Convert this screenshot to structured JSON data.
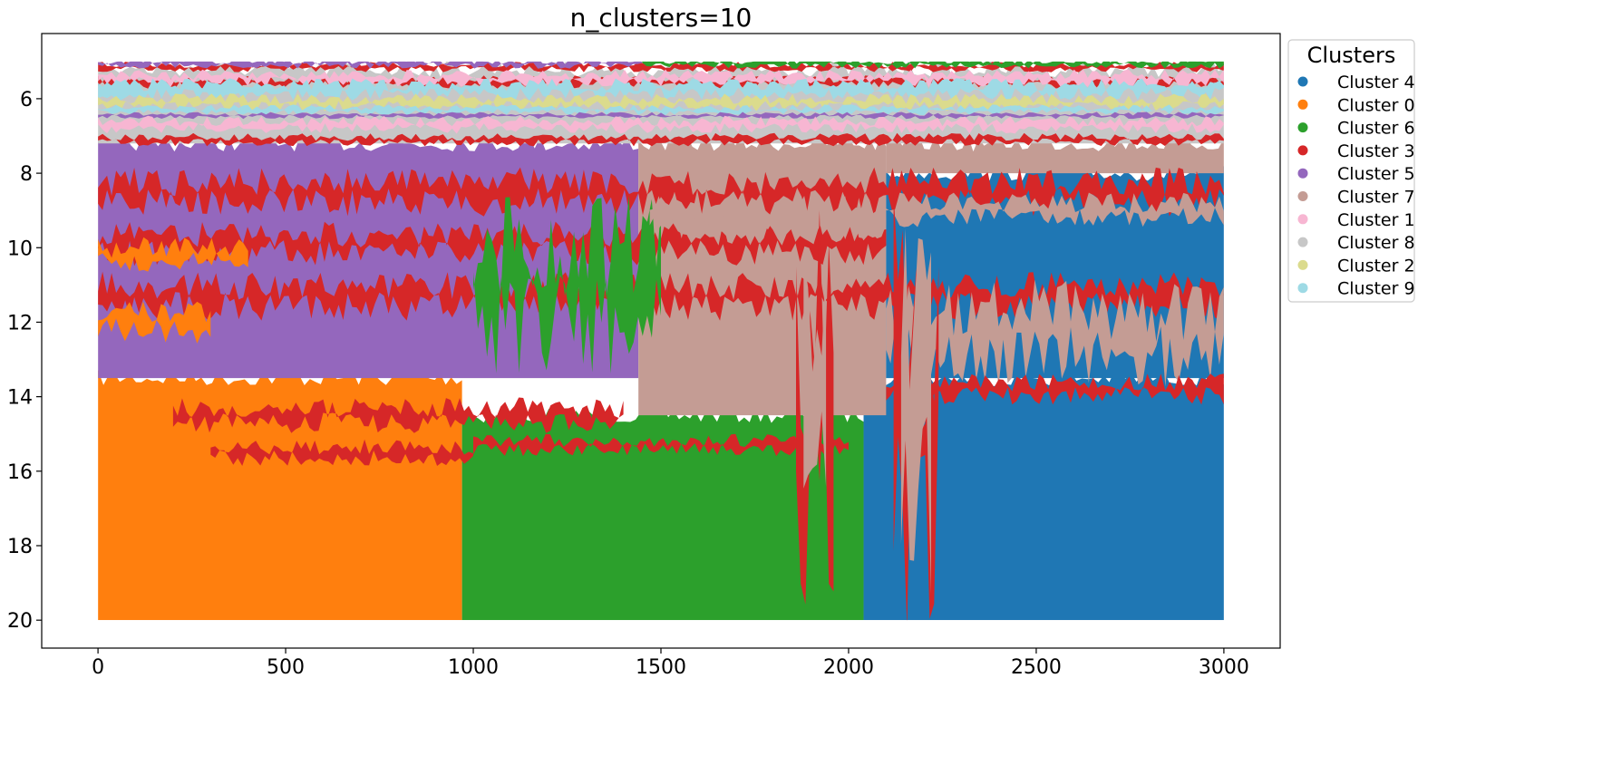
{
  "chart_data": {
    "type": "scatter",
    "title": "n_clusters=10",
    "xlabel": "",
    "ylabel": "",
    "xlim": [
      -150,
      3150
    ],
    "ylim": [
      20.75,
      4.25
    ],
    "y_inverted": true,
    "x_ticks": [
      0,
      500,
      1000,
      1500,
      2000,
      2500,
      3000
    ],
    "x_tick_labels": [
      "0",
      "500",
      "1000",
      "1500",
      "2000",
      "2500",
      "3000"
    ],
    "y_ticks": [
      6,
      8,
      10,
      12,
      14,
      16,
      18,
      20
    ],
    "y_tick_labels": [
      "6",
      "8",
      "10",
      "12",
      "14",
      "16",
      "18",
      "20"
    ],
    "grid": false,
    "legend": {
      "title": "Clusters",
      "placement": "outside-top-right",
      "entries": [
        {
          "label": "Cluster 4",
          "color": "#1f77b4"
        },
        {
          "label": "Cluster 0",
          "color": "#ff7f0e"
        },
        {
          "label": "Cluster 6",
          "color": "#2ca02c"
        },
        {
          "label": "Cluster 3",
          "color": "#d62728"
        },
        {
          "label": "Cluster 5",
          "color": "#9467bd"
        },
        {
          "label": "Cluster 7",
          "color": "#c49c94"
        },
        {
          "label": "Cluster 1",
          "color": "#f7b6d2"
        },
        {
          "label": "Cluster 8",
          "color": "#c7c7c7"
        },
        {
          "label": "Cluster 2",
          "color": "#dbdb8d"
        },
        {
          "label": "Cluster 9",
          "color": "#9edae5"
        }
      ]
    },
    "data_extent": {
      "x": [
        0,
        3000
      ],
      "y": [
        5,
        20
      ]
    },
    "regions": [
      {
        "cluster": "Cluster 0",
        "x0": 0,
        "x1": 970,
        "y0": 13.5,
        "y1": 20
      },
      {
        "cluster": "Cluster 6",
        "x0": 970,
        "x1": 2040,
        "y0": 14.5,
        "y1": 20
      },
      {
        "cluster": "Cluster 4",
        "x0": 2040,
        "x1": 3000,
        "y0": 13.5,
        "y1": 20
      },
      {
        "cluster": "Cluster 5",
        "x0": 0,
        "x1": 1440,
        "y0": 7.2,
        "y1": 13.5
      },
      {
        "cluster": "Cluster 7",
        "x0": 1440,
        "x1": 2100,
        "y0": 7.2,
        "y1": 14.5
      },
      {
        "cluster": "Cluster 4",
        "x0": 2100,
        "x1": 3000,
        "y0": 8.0,
        "y1": 13.5
      },
      {
        "cluster": "Cluster 7",
        "x0": 2100,
        "x1": 3000,
        "y0": 7.2,
        "y1": 8.0
      },
      {
        "cluster": "Cluster 8",
        "x0": 0,
        "x1": 3000,
        "y0": 5.2,
        "y1": 7.2
      }
    ],
    "bands": [
      {
        "cluster": "Cluster 3",
        "x0": 0,
        "x1": 3000,
        "y": 5.15,
        "h": 0.12
      },
      {
        "cluster": "Cluster 5",
        "x0": 0,
        "x1": 1450,
        "y": 5.05,
        "h": 0.12
      },
      {
        "cluster": "Cluster 6",
        "x0": 1450,
        "x1": 3000,
        "y": 5.05,
        "h": 0.12
      },
      {
        "cluster": "Cluster 3",
        "x0": 0,
        "x1": 3000,
        "y": 5.55,
        "h": 0.15
      },
      {
        "cluster": "Cluster 1",
        "x0": 0,
        "x1": 3000,
        "y": 5.45,
        "h": 0.2
      },
      {
        "cluster": "Cluster 9",
        "x0": 0,
        "x1": 3000,
        "y": 5.75,
        "h": 0.25
      },
      {
        "cluster": "Cluster 2",
        "x0": 0,
        "x1": 3000,
        "y": 6.1,
        "h": 0.2
      },
      {
        "cluster": "Cluster 9",
        "x0": 0,
        "x1": 3000,
        "y": 6.3,
        "h": 0.12
      },
      {
        "cluster": "Cluster 5",
        "x0": 0,
        "x1": 3000,
        "y": 6.45,
        "h": 0.08
      },
      {
        "cluster": "Cluster 1",
        "x0": 0,
        "x1": 3000,
        "y": 6.7,
        "h": 0.2
      },
      {
        "cluster": "Cluster 3",
        "x0": 0,
        "x1": 3000,
        "y": 7.1,
        "h": 0.15
      },
      {
        "cluster": "Cluster 3",
        "x0": 0,
        "x1": 3000,
        "y": 8.5,
        "h": 0.55
      },
      {
        "cluster": "Cluster 3",
        "x0": 0,
        "x1": 2100,
        "y": 9.9,
        "h": 0.5
      },
      {
        "cluster": "Cluster 3",
        "x0": 0,
        "x1": 3000,
        "y": 11.3,
        "h": 0.55
      },
      {
        "cluster": "Cluster 0",
        "x0": 0,
        "x1": 400,
        "y": 10.2,
        "h": 0.4
      },
      {
        "cluster": "Cluster 0",
        "x0": 0,
        "x1": 300,
        "y": 12.0,
        "h": 0.5
      },
      {
        "cluster": "Cluster 6",
        "x0": 1000,
        "x1": 1500,
        "y": 11.0,
        "h": 2.0
      },
      {
        "cluster": "Cluster 3",
        "x0": 200,
        "x1": 1400,
        "y": 14.5,
        "h": 0.4
      },
      {
        "cluster": "Cluster 3",
        "x0": 300,
        "x1": 1000,
        "y": 15.5,
        "h": 0.3
      },
      {
        "cluster": "Cluster 3",
        "x0": 1000,
        "x1": 2000,
        "y": 15.3,
        "h": 0.25
      },
      {
        "cluster": "Cluster 7",
        "x0": 1470,
        "x1": 2100,
        "y": 9.2,
        "h": 0.5
      },
      {
        "cluster": "Cluster 7",
        "x0": 2100,
        "x1": 3000,
        "y": 12.3,
        "h": 1.2
      },
      {
        "cluster": "Cluster 7",
        "x0": 2100,
        "x1": 3000,
        "y": 9.0,
        "h": 0.4
      },
      {
        "cluster": "Cluster 3",
        "x0": 2100,
        "x1": 3000,
        "y": 13.8,
        "h": 0.35
      },
      {
        "cluster": "Cluster 3",
        "x0": 1860,
        "x1": 1960,
        "y": 14.5,
        "h": 4.8
      },
      {
        "cluster": "Cluster 7",
        "x0": 1880,
        "x1": 1940,
        "y": 14.5,
        "h": 4.0
      },
      {
        "cluster": "Cluster 3",
        "x0": 2120,
        "x1": 2240,
        "y": 14.5,
        "h": 5.2
      },
      {
        "cluster": "Cluster 7",
        "x0": 2140,
        "x1": 2220,
        "y": 14.5,
        "h": 4.5
      }
    ]
  }
}
